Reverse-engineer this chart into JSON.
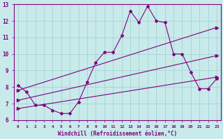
{
  "xlabel": "Windchill (Refroidissement éolien,°C)",
  "bg_color": "#c8eaea",
  "line_color": "#800080",
  "grid_color": "#9ecfcf",
  "xlim": [
    -0.5,
    23.5
  ],
  "ylim": [
    6,
    13
  ],
  "xticks": [
    0,
    1,
    2,
    3,
    4,
    5,
    6,
    7,
    8,
    9,
    10,
    11,
    12,
    13,
    14,
    15,
    16,
    17,
    18,
    19,
    20,
    21,
    22,
    23
  ],
  "yticks": [
    6,
    7,
    8,
    9,
    10,
    11,
    12,
    13
  ],
  "line1_x": [
    0,
    1,
    2,
    3,
    4,
    5,
    6,
    7,
    8,
    9,
    10,
    11,
    12,
    13,
    14,
    15,
    16,
    17,
    18,
    19,
    20,
    21,
    22,
    23
  ],
  "line1_y": [
    8.1,
    7.7,
    6.9,
    6.9,
    6.6,
    6.4,
    6.4,
    7.1,
    8.3,
    9.5,
    10.1,
    10.1,
    11.1,
    12.6,
    11.9,
    12.9,
    12.0,
    11.9,
    10.0,
    10.0,
    8.9,
    7.9,
    7.9,
    8.5
  ],
  "line2_x": [
    0,
    23
  ],
  "line2_y": [
    7.8,
    11.6
  ],
  "line3_x": [
    0,
    23
  ],
  "line3_y": [
    7.2,
    9.9
  ],
  "line4_x": [
    0,
    23
  ],
  "line4_y": [
    6.7,
    8.6
  ]
}
